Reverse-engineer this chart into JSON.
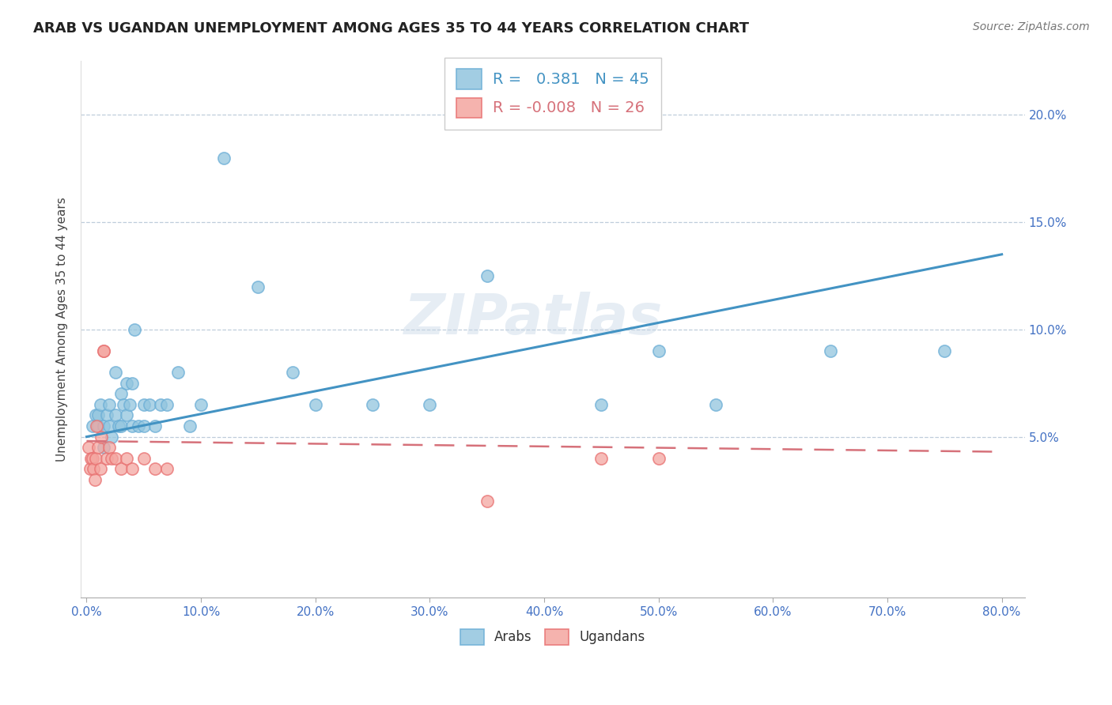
{
  "title": "ARAB VS UGANDAN UNEMPLOYMENT AMONG AGES 35 TO 44 YEARS CORRELATION CHART",
  "source": "Source: ZipAtlas.com",
  "ylabel": "Unemployment Among Ages 35 to 44 years",
  "xlim": [
    -0.005,
    0.82
  ],
  "ylim": [
    -0.025,
    0.225
  ],
  "xticks": [
    0.0,
    0.1,
    0.2,
    0.3,
    0.4,
    0.5,
    0.6,
    0.7,
    0.8
  ],
  "yticks": [
    0.05,
    0.1,
    0.15,
    0.2
  ],
  "arab_R": 0.381,
  "arab_N": 45,
  "ugandan_R": -0.008,
  "ugandan_N": 26,
  "arab_color": "#92c5de",
  "ugandan_color": "#f4a6a0",
  "arab_edge_color": "#6baed6",
  "ugandan_edge_color": "#e87070",
  "trendline_arab_color": "#4393c3",
  "trendline_ugandan_color": "#d6717a",
  "watermark": "ZIPatlas",
  "arab_x": [
    0.005,
    0.008,
    0.01,
    0.01,
    0.012,
    0.015,
    0.015,
    0.018,
    0.02,
    0.02,
    0.022,
    0.025,
    0.025,
    0.028,
    0.03,
    0.03,
    0.032,
    0.035,
    0.035,
    0.038,
    0.04,
    0.04,
    0.042,
    0.045,
    0.05,
    0.05,
    0.055,
    0.06,
    0.065,
    0.07,
    0.08,
    0.09,
    0.1,
    0.12,
    0.15,
    0.18,
    0.2,
    0.25,
    0.3,
    0.35,
    0.45,
    0.5,
    0.55,
    0.65,
    0.75
  ],
  "arab_y": [
    0.055,
    0.06,
    0.055,
    0.06,
    0.065,
    0.055,
    0.045,
    0.06,
    0.055,
    0.065,
    0.05,
    0.06,
    0.08,
    0.055,
    0.055,
    0.07,
    0.065,
    0.06,
    0.075,
    0.065,
    0.055,
    0.075,
    0.1,
    0.055,
    0.065,
    0.055,
    0.065,
    0.055,
    0.065,
    0.065,
    0.08,
    0.055,
    0.065,
    0.18,
    0.12,
    0.08,
    0.065,
    0.065,
    0.065,
    0.125,
    0.065,
    0.09,
    0.065,
    0.09,
    0.09
  ],
  "ugandan_x": [
    0.002,
    0.003,
    0.004,
    0.005,
    0.006,
    0.007,
    0.008,
    0.009,
    0.01,
    0.012,
    0.013,
    0.015,
    0.015,
    0.018,
    0.02,
    0.022,
    0.025,
    0.03,
    0.035,
    0.04,
    0.05,
    0.06,
    0.07,
    0.35,
    0.45,
    0.5
  ],
  "ugandan_y": [
    0.045,
    0.035,
    0.04,
    0.04,
    0.035,
    0.03,
    0.04,
    0.055,
    0.045,
    0.035,
    0.05,
    0.09,
    0.09,
    0.04,
    0.045,
    0.04,
    0.04,
    0.035,
    0.04,
    0.035,
    0.04,
    0.035,
    0.035,
    0.02,
    0.04,
    0.04
  ],
  "arab_trendline_x": [
    0.0,
    0.8
  ],
  "arab_trendline_y": [
    0.05,
    0.135
  ],
  "ugandan_trendline_x": [
    0.0,
    0.8
  ],
  "ugandan_trendline_y": [
    0.048,
    0.043
  ]
}
